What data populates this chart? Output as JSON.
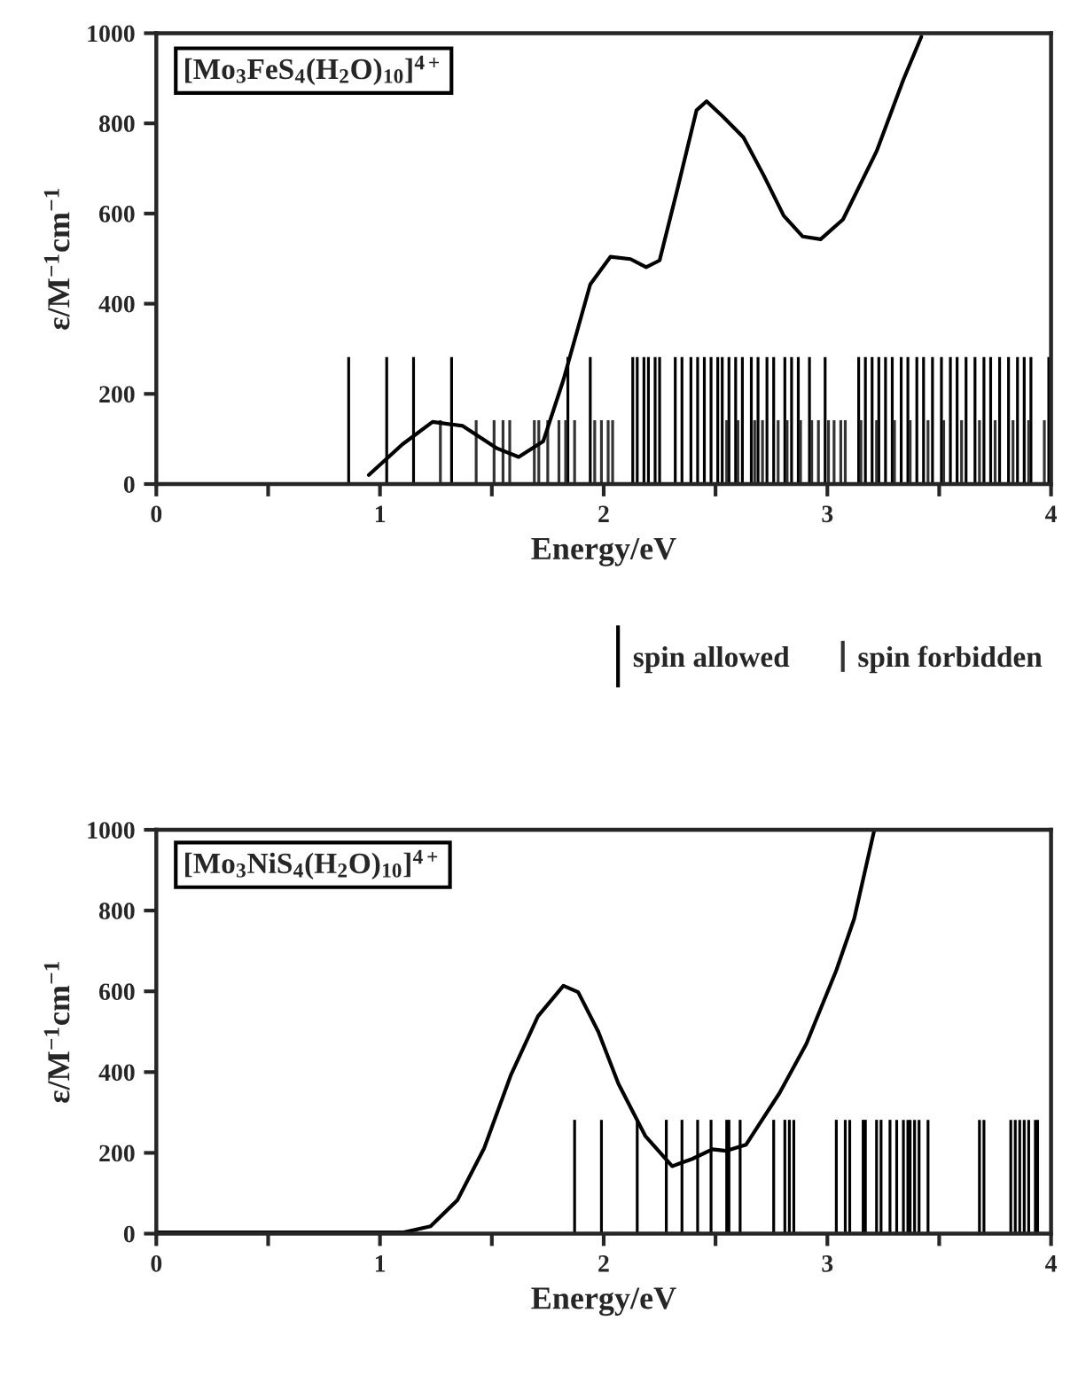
{
  "chart_data": [
    {
      "type": "line",
      "xlabel": "Energy/eV",
      "ylabel": "ε/M$^{−1}$cm$^{−1}$",
      "annotations": [
        "[Mo$_{3}$FeS$_{4}$(H$_{2}$O)$_{10}$]$^{4+}$"
      ],
      "xlim": [
        0,
        4
      ],
      "ylim": [
        0,
        1000
      ],
      "xticks": [
        0,
        {
          "value": 0.5,
          "label": null
        },
        1,
        {
          "value": 1.5,
          "label": null
        },
        2,
        {
          "value": 2.5,
          "label": null
        },
        3,
        {
          "value": 3.5,
          "label": null
        },
        4
      ],
      "yticks": [
        0,
        200,
        400,
        600,
        800,
        1000
      ],
      "grid": false,
      "legend": "bottom",
      "series": [
        {
          "type": "bar",
          "name": "spin allowed",
          "color": "#000000",
          "x": [
            0.86,
            1.03,
            1.15,
            1.32,
            1.84,
            1.94,
            2.13,
            2.15,
            2.18,
            2.2,
            2.23,
            2.25,
            2.32,
            2.35,
            2.39,
            2.42,
            2.45,
            2.48,
            2.51,
            2.53,
            2.56,
            2.59,
            2.62,
            2.66,
            2.69,
            2.73,
            2.76,
            2.81,
            2.84,
            2.87,
            2.92,
            2.99,
            3.14,
            3.17,
            3.2,
            3.23,
            3.26,
            3.29,
            3.33,
            3.36,
            3.4,
            3.43,
            3.47,
            3.51,
            3.55,
            3.58,
            3.62,
            3.66,
            3.7,
            3.73,
            3.77,
            3.81,
            3.85,
            3.88,
            3.91,
            3.99
          ],
          "values": [
            280,
            280,
            280,
            280,
            280,
            280,
            280,
            280,
            280,
            280,
            280,
            280,
            280,
            280,
            280,
            280,
            280,
            280,
            280,
            280,
            280,
            280,
            280,
            280,
            280,
            280,
            280,
            280,
            280,
            280,
            280,
            280,
            280,
            280,
            280,
            280,
            280,
            280,
            280,
            280,
            280,
            280,
            280,
            280,
            280,
            280,
            280,
            280,
            280,
            280,
            280,
            280,
            280,
            280,
            280,
            280
          ]
        },
        {
          "type": "bar",
          "name": "spin forbidden",
          "color": "#333333",
          "x": [
            1.27,
            1.43,
            1.51,
            1.55,
            1.58,
            1.69,
            1.71,
            1.75,
            1.8,
            1.83,
            1.87,
            1.96,
            1.99,
            2.02,
            2.04,
            2.55,
            2.6,
            2.675,
            2.71,
            2.78,
            2.82,
            2.88,
            2.93,
            2.96,
            3.005,
            3.03,
            3.06,
            3.08,
            3.15,
            3.22,
            3.3,
            3.37,
            3.45,
            3.52,
            3.6,
            3.68,
            3.75,
            3.83,
            3.9,
            3.97
          ],
          "values": [
            140,
            140,
            140,
            140,
            140,
            140,
            140,
            140,
            140,
            140,
            140,
            140,
            140,
            140,
            140,
            140,
            140,
            140,
            140,
            140,
            140,
            140,
            140,
            140,
            140,
            140,
            140,
            140,
            140,
            140,
            140,
            140,
            140,
            140,
            140,
            140,
            140,
            140,
            140,
            140
          ]
        },
        {
          "color": "#000000",
          "x": [
            0.95,
            1.1,
            1.235,
            1.37,
            1.52,
            1.62,
            1.73,
            1.82,
            1.94,
            2.03,
            2.12,
            2.19,
            2.25,
            2.33,
            2.415,
            2.46,
            2.535,
            2.625,
            2.715,
            2.805,
            2.89,
            2.97,
            3.07,
            3.22,
            3.34,
            3.42
          ],
          "values": [
            20,
            88,
            138,
            129,
            80,
            60,
            95,
            231,
            443,
            504,
            499,
            481,
            496,
            655,
            829,
            849,
            814,
            769,
            685,
            595,
            549,
            543,
            587,
            738,
            897,
            992
          ]
        }
      ]
    },
    {
      "type": "line",
      "xlabel": "Energy/eV",
      "ylabel": "ε/M$^{−1}$cm$^{−1}$",
      "annotations": [
        "[Mo$_{3}$NiS$_{4}$(H$_{2}$O)$_{10}$]$^{4+}$"
      ],
      "xlim": [
        0,
        4
      ],
      "ylim": [
        0,
        1000
      ],
      "xticks": [
        0,
        {
          "value": 0.5,
          "label": null
        },
        1,
        {
          "value": 1.5,
          "label": null
        },
        2,
        {
          "value": 2.5,
          "label": null
        },
        3,
        {
          "value": 3.5,
          "label": null
        },
        4
      ],
      "yticks": [
        0,
        200,
        400,
        600,
        800,
        1000
      ],
      "grid": false,
      "series": [
        {
          "type": "bar",
          "color": "#000000",
          "x": [
            1.87,
            1.99,
            2.15,
            2.28,
            2.35,
            2.42,
            2.48,
            2.55,
            2.56,
            2.61,
            2.76,
            2.81,
            2.83,
            2.85,
            3.04,
            3.08,
            3.1,
            3.16,
            3.17,
            3.22,
            3.24,
            3.28,
            3.31,
            3.34,
            3.36,
            3.37,
            3.39,
            3.41,
            3.45,
            3.68,
            3.7,
            3.82,
            3.84,
            3.86,
            3.88,
            3.9,
            3.93,
            3.94
          ],
          "values": [
            280,
            280,
            280,
            280,
            280,
            280,
            280,
            280,
            280,
            280,
            280,
            280,
            280,
            280,
            280,
            280,
            280,
            280,
            280,
            280,
            280,
            280,
            280,
            280,
            280,
            280,
            280,
            280,
            280,
            280,
            280,
            280,
            280,
            280,
            280,
            280,
            280,
            280
          ]
        },
        {
          "color": "#000000",
          "x": [
            0,
            1.106,
            1.226,
            1.346,
            1.466,
            1.586,
            1.706,
            1.82,
            1.886,
            1.976,
            2.066,
            2.186,
            2.306,
            2.396,
            2.486,
            2.546,
            2.636,
            2.786,
            2.906,
            3.04,
            3.12,
            3.21
          ],
          "values": [
            3,
            3,
            18,
            83,
            212,
            394,
            538,
            614,
            598,
            500,
            371,
            242,
            167,
            185,
            209,
            205,
            220,
            348,
            470,
            652,
            780,
            1000
          ]
        }
      ]
    }
  ]
}
